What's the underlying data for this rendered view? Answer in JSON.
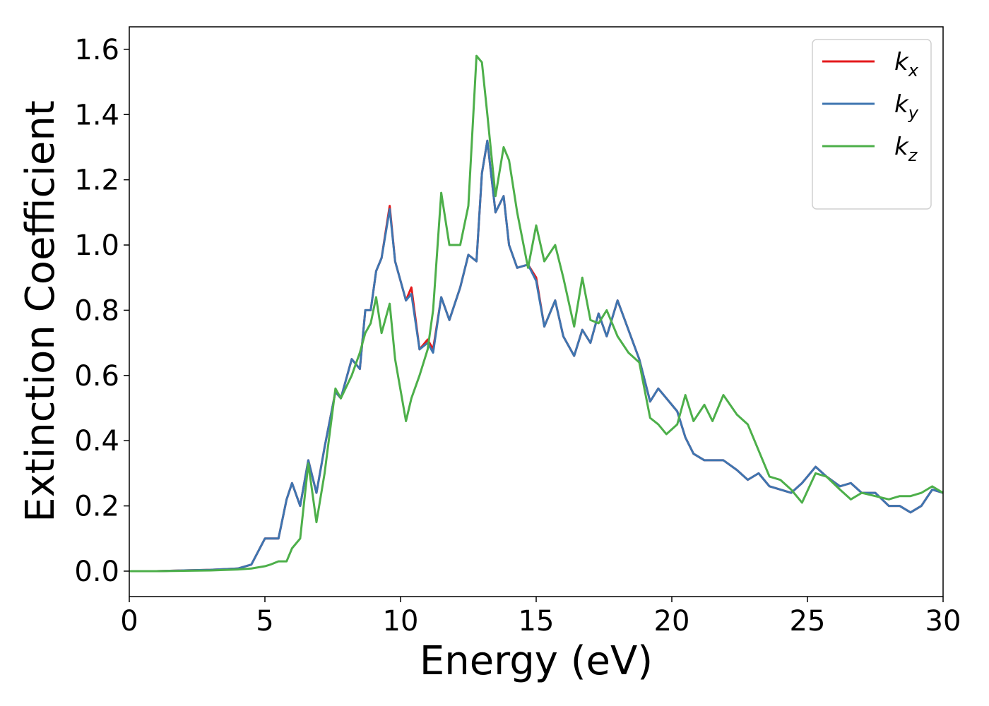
{
  "chart_data": {
    "type": "line",
    "xlabel": "Energy (eV)",
    "ylabel": "Extinction Coefficient",
    "xlim": [
      0,
      30
    ],
    "ylim": [
      -0.078,
      1.669
    ],
    "xticks": [
      0,
      5,
      10,
      15,
      20,
      25,
      30
    ],
    "yticks": [
      {
        "value": 0,
        "label": "0.0"
      },
      {
        "value": 0.2,
        "label": "0.2"
      },
      {
        "value": 0.4,
        "label": "0.4"
      },
      {
        "value": 0.6,
        "label": "0.6"
      },
      {
        "value": 0.8,
        "label": "0.8"
      },
      {
        "value": 1.0,
        "label": "1.0"
      },
      {
        "value": 1.2,
        "label": "1.2"
      },
      {
        "value": 1.4,
        "label": "1.4"
      },
      {
        "value": 1.6,
        "label": "1.6"
      }
    ],
    "legend": "upper right",
    "x": [
      0,
      1,
      2,
      3,
      4,
      4.5,
      5,
      5.2,
      5.5,
      5.8,
      6,
      6.3,
      6.6,
      6.9,
      7.2,
      7.6,
      7.8,
      8.2,
      8.5,
      8.7,
      8.9,
      9.1,
      9.3,
      9.6,
      9.8,
      10.2,
      10.4,
      10.7,
      11,
      11.2,
      11.5,
      11.8,
      12.2,
      12.5,
      12.8,
      13.0,
      13.2,
      13.5,
      13.8,
      14.0,
      14.3,
      14.7,
      15.0,
      15.3,
      15.7,
      16.0,
      16.4,
      16.7,
      17.0,
      17.3,
      17.6,
      18.0,
      18.4,
      18.8,
      19.2,
      19.5,
      19.8,
      20.2,
      20.5,
      20.8,
      21.2,
      21.5,
      21.9,
      22.4,
      22.8,
      23.2,
      23.6,
      24.0,
      24.4,
      24.8,
      25.3,
      25.7,
      26.2,
      26.6,
      27.0,
      27.5,
      28.0,
      28.4,
      28.8,
      29.2,
      29.6,
      30
    ],
    "series": [
      {
        "name": "kx",
        "color": "#e41a1c",
        "values": [
          0,
          0,
          0.002,
          0.004,
          0.008,
          0.02,
          0.1,
          0.1,
          0.1,
          0.22,
          0.27,
          0.2,
          0.34,
          0.24,
          0.38,
          0.55,
          0.53,
          0.65,
          0.62,
          0.8,
          0.8,
          0.92,
          0.96,
          1.12,
          0.95,
          0.83,
          0.87,
          0.68,
          0.71,
          0.68,
          0.84,
          0.77,
          0.87,
          0.97,
          0.95,
          1.22,
          1.32,
          1.1,
          1.15,
          1.0,
          0.93,
          0.94,
          0.9,
          0.75,
          0.83,
          0.72,
          0.66,
          0.74,
          0.7,
          0.79,
          0.72,
          0.83,
          0.74,
          0.65,
          0.52,
          0.56,
          0.53,
          0.49,
          0.41,
          0.36,
          0.34,
          0.34,
          0.34,
          0.31,
          0.28,
          0.3,
          0.26,
          0.25,
          0.24,
          0.27,
          0.32,
          0.29,
          0.26,
          0.27,
          0.24,
          0.24,
          0.2,
          0.2,
          0.18,
          0.2,
          0.25,
          0.24
        ]
      },
      {
        "name": "ky",
        "color": "#3e75b0",
        "values": [
          0,
          0,
          0.002,
          0.004,
          0.008,
          0.02,
          0.1,
          0.1,
          0.1,
          0.22,
          0.27,
          0.2,
          0.34,
          0.24,
          0.38,
          0.55,
          0.53,
          0.65,
          0.62,
          0.8,
          0.8,
          0.92,
          0.96,
          1.11,
          0.95,
          0.83,
          0.85,
          0.68,
          0.7,
          0.67,
          0.84,
          0.77,
          0.87,
          0.97,
          0.95,
          1.22,
          1.32,
          1.1,
          1.15,
          1.0,
          0.93,
          0.94,
          0.89,
          0.75,
          0.83,
          0.72,
          0.66,
          0.74,
          0.7,
          0.79,
          0.72,
          0.83,
          0.74,
          0.65,
          0.52,
          0.56,
          0.53,
          0.49,
          0.41,
          0.36,
          0.34,
          0.34,
          0.34,
          0.31,
          0.28,
          0.3,
          0.26,
          0.25,
          0.24,
          0.27,
          0.32,
          0.29,
          0.26,
          0.27,
          0.24,
          0.24,
          0.2,
          0.2,
          0.18,
          0.2,
          0.25,
          0.24
        ]
      },
      {
        "name": "kz",
        "color": "#4daf4a",
        "values": [
          0,
          0,
          0.001,
          0.002,
          0.005,
          0.008,
          0.015,
          0.02,
          0.03,
          0.03,
          0.07,
          0.1,
          0.33,
          0.15,
          0.3,
          0.56,
          0.53,
          0.6,
          0.67,
          0.73,
          0.76,
          0.84,
          0.73,
          0.82,
          0.65,
          0.46,
          0.53,
          0.6,
          0.68,
          0.8,
          1.16,
          1.0,
          1.0,
          1.12,
          1.58,
          1.56,
          1.4,
          1.15,
          1.3,
          1.26,
          1.1,
          0.93,
          1.06,
          0.95,
          1.0,
          0.9,
          0.75,
          0.9,
          0.77,
          0.76,
          0.8,
          0.72,
          0.67,
          0.64,
          0.47,
          0.45,
          0.42,
          0.45,
          0.54,
          0.46,
          0.51,
          0.46,
          0.54,
          0.48,
          0.45,
          0.37,
          0.29,
          0.28,
          0.25,
          0.21,
          0.3,
          0.29,
          0.25,
          0.22,
          0.24,
          0.23,
          0.22,
          0.23,
          0.23,
          0.24,
          0.26,
          0.24
        ]
      }
    ]
  }
}
